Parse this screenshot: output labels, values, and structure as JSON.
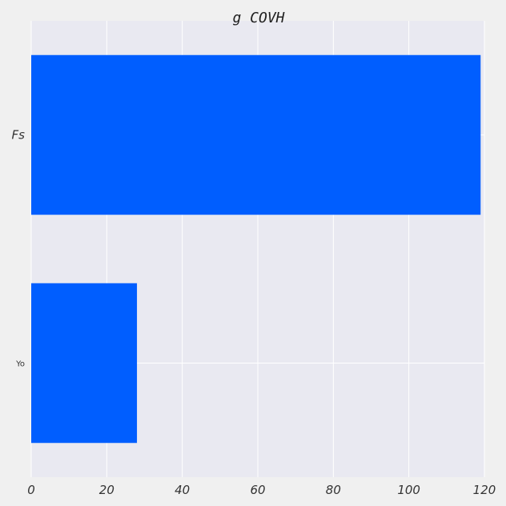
{
  "chart_data": {
    "type": "bar",
    "orientation": "horizontal",
    "title": "g  COVH",
    "xlabel": "",
    "ylabel": "",
    "categories": [
      "Fs",
      "Yo"
    ],
    "values": [
      119,
      28
    ],
    "xlim": [
      0,
      120
    ],
    "xticks": [
      0,
      20,
      40,
      60,
      80,
      100,
      120
    ],
    "bar_color": "#005eff",
    "plot_background": "#e9e9f1",
    "figure_background": "#f0f0f0",
    "grid": true,
    "legend": "none"
  }
}
